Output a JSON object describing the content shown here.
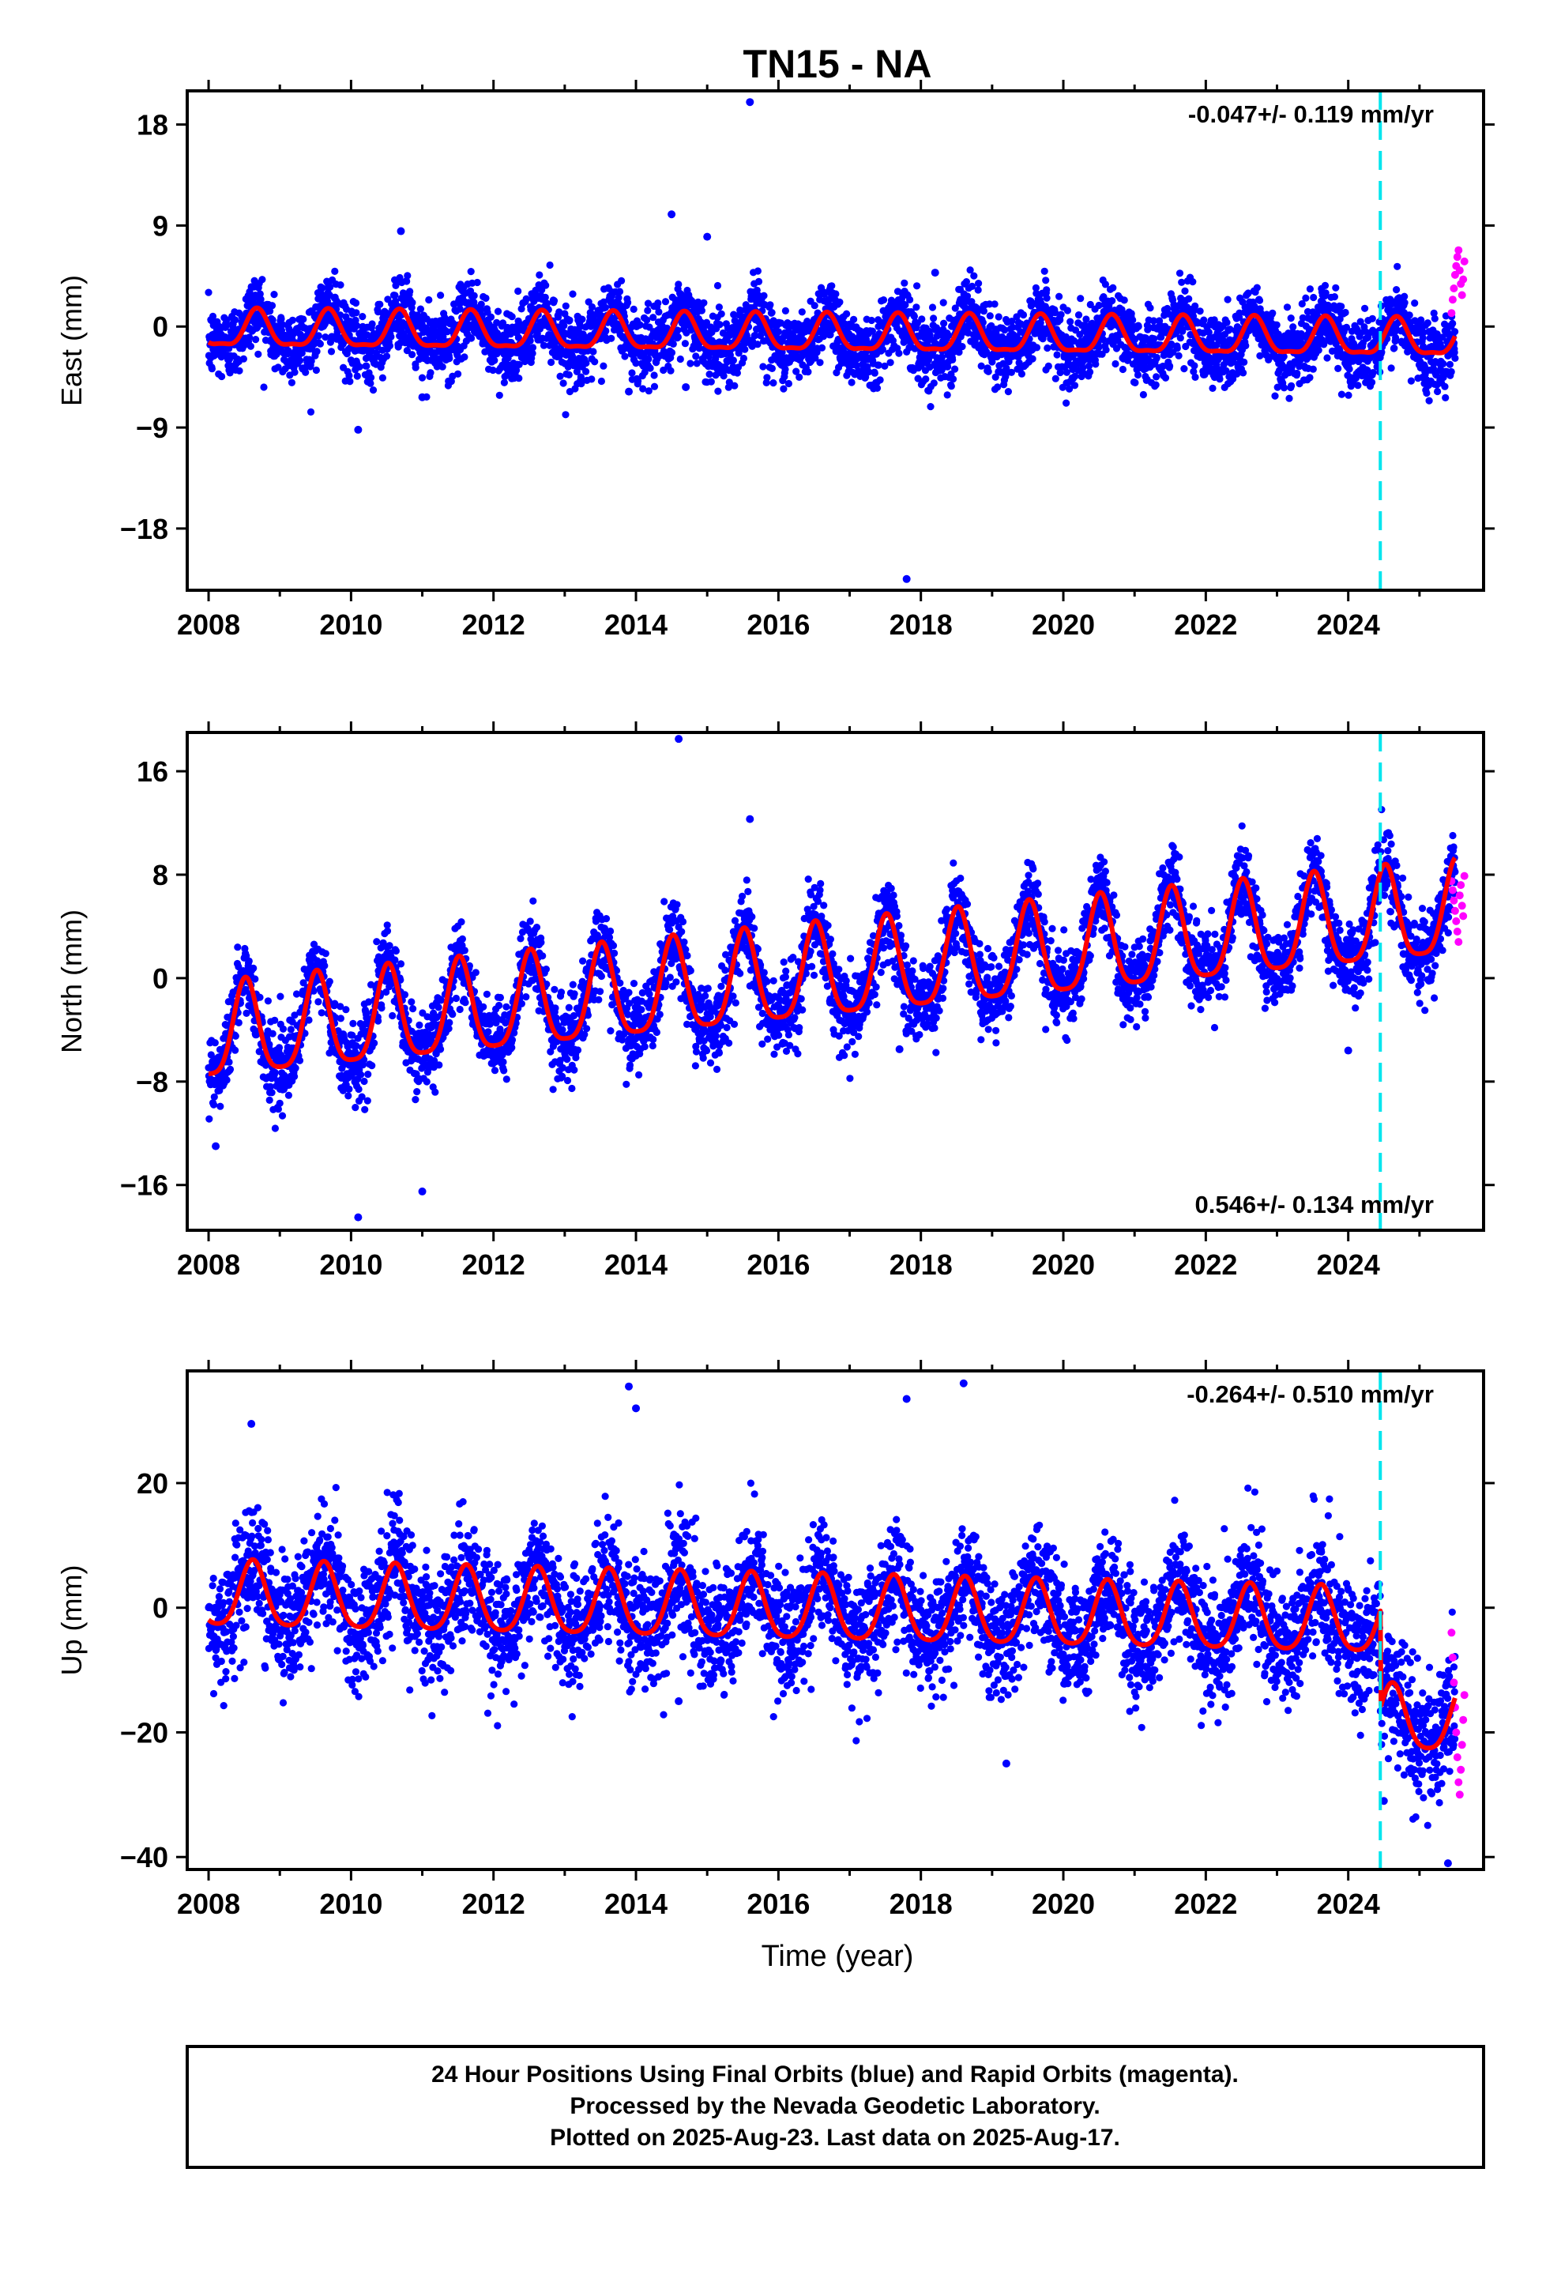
{
  "title": "TN15 - NA",
  "xlabel": "Time (year)",
  "x_tick_labels": [
    "2008",
    "2010",
    "2012",
    "2014",
    "2016",
    "2018",
    "2020",
    "2022",
    "2024"
  ],
  "colors": {
    "final_orbits": "#0000ff",
    "rapid_orbits": "#ff00ff",
    "model_fit": "#ff0000",
    "offset_marker": "#00e5ee"
  },
  "note_lines": [
    "24 Hour Positions Using Final Orbits (blue) and Rapid Orbits (magenta).",
    "Processed by the Nevada Geodetic Laboratory.",
    "Plotted on 2025-Aug-23. Last data on 2025-Aug-17."
  ],
  "chart_data": [
    {
      "type": "scatter",
      "ylabel": "East (mm)",
      "rate_label": "-0.047+/- 0.119 mm/yr",
      "rate_position": "top-right",
      "xlim": [
        2007.7,
        2025.9
      ],
      "ylim": [
        -23.5,
        21
      ],
      "yticks": [
        -18,
        -9,
        0,
        9,
        18
      ],
      "ytick_labels": [
        "−18",
        "−9",
        "0",
        "9",
        "18"
      ],
      "offset_epoch": 2024.45,
      "data_range": [
        2008.0,
        2025.5
      ],
      "rapid_range": [
        2025.45,
        2025.63
      ],
      "model": {
        "trend_start": -0.4,
        "rate_mm_per_yr": -0.047,
        "annual_amplitude": 1.6,
        "annual_peak": 2008.68,
        "semiannual_amplitude": 0.5,
        "semiannual_peak": 2008.68,
        "offset": 0.0,
        "decimal_start": 2008.0
      },
      "scatter_sd": 1.6,
      "rapid_values": [
        1.2,
        2.4,
        3.4,
        4.6,
        5.4,
        6.2,
        6.8,
        5.0,
        3.8,
        2.8,
        4.2,
        5.8
      ],
      "outliers": [
        [
          2015.6,
          20.0
        ],
        [
          2017.8,
          -22.5
        ],
        [
          2014.5,
          10.0
        ],
        [
          2010.1,
          -9.2
        ],
        [
          2011.0,
          -6.3
        ],
        [
          2013.9,
          -5.8
        ],
        [
          2014.7,
          -5.4
        ],
        [
          2018.2,
          4.8
        ],
        [
          2010.7,
          8.5
        ],
        [
          2015.0,
          8.0
        ]
      ]
    },
    {
      "type": "scatter",
      "ylabel": "North (mm)",
      "rate_label": "0.546+/- 0.134 mm/yr",
      "rate_position": "bottom-right",
      "xlim": [
        2007.7,
        2025.9
      ],
      "ylim": [
        -19.5,
        19
      ],
      "yticks": [
        -16,
        -8,
        0,
        8,
        16
      ],
      "ytick_labels": [
        "−16",
        "−8",
        "0",
        "8",
        "16"
      ],
      "offset_epoch": 2024.45,
      "data_range": [
        2008.0,
        2025.5
      ],
      "rapid_range": [
        2025.45,
        2025.63
      ],
      "model": {
        "trend_start": -4.6,
        "rate_mm_per_yr": 0.546,
        "annual_amplitude": 3.6,
        "annual_peak": 2008.52,
        "semiannual_amplitude": 0.8,
        "semiannual_peak": 2008.52,
        "offset": 0.0,
        "decimal_start": 2008.0
      },
      "scatter_sd": 1.5,
      "rapid_values": [
        7.5,
        6.8,
        6.0,
        5.2,
        4.4,
        3.6,
        2.8,
        6.4,
        7.2,
        5.6,
        4.8,
        7.9
      ],
      "outliers": [
        [
          2014.6,
          18.5
        ],
        [
          2015.6,
          12.3
        ],
        [
          2010.1,
          -18.5
        ],
        [
          2011.0,
          -16.5
        ],
        [
          2008.1,
          -13.0
        ],
        [
          2024.0,
          -5.6
        ],
        [
          2017.7,
          -5.5
        ]
      ]
    },
    {
      "type": "scatter",
      "ylabel": "Up (mm)",
      "rate_label": "-0.264+/- 0.510 mm/yr",
      "rate_position": "top-right",
      "xlim": [
        2007.7,
        2025.9
      ],
      "ylim": [
        -42,
        38
      ],
      "yticks": [
        -40,
        -20,
        0,
        20
      ],
      "ytick_labels": [
        "−40",
        "−20",
        "0",
        "20"
      ],
      "offset_epoch": 2024.45,
      "data_range": [
        2008.0,
        2025.5
      ],
      "rapid_range": [
        2025.45,
        2025.63
      ],
      "model": {
        "trend_start": 1.8,
        "rate_mm_per_yr": -0.264,
        "annual_amplitude": 5.2,
        "annual_peak": 2008.62,
        "semiannual_amplitude": 0.9,
        "semiannual_peak": 2008.62,
        "offset": -15.5,
        "decimal_start": 2008.0
      },
      "scatter_sd": 4.8,
      "rapid_values": [
        -4,
        -8,
        -12,
        -16,
        -20,
        -24,
        -28,
        -30,
        -26,
        -22,
        -18,
        -14
      ],
      "outliers": [
        [
          2013.9,
          35.5
        ],
        [
          2014.0,
          32.0
        ],
        [
          2017.8,
          33.5
        ],
        [
          2018.6,
          36.0
        ],
        [
          2008.6,
          29.5
        ],
        [
          2019.2,
          -25.0
        ],
        [
          2025.4,
          -41.0
        ],
        [
          2014.6,
          -15.0
        ],
        [
          2024.5,
          -31.0
        ]
      ]
    }
  ]
}
